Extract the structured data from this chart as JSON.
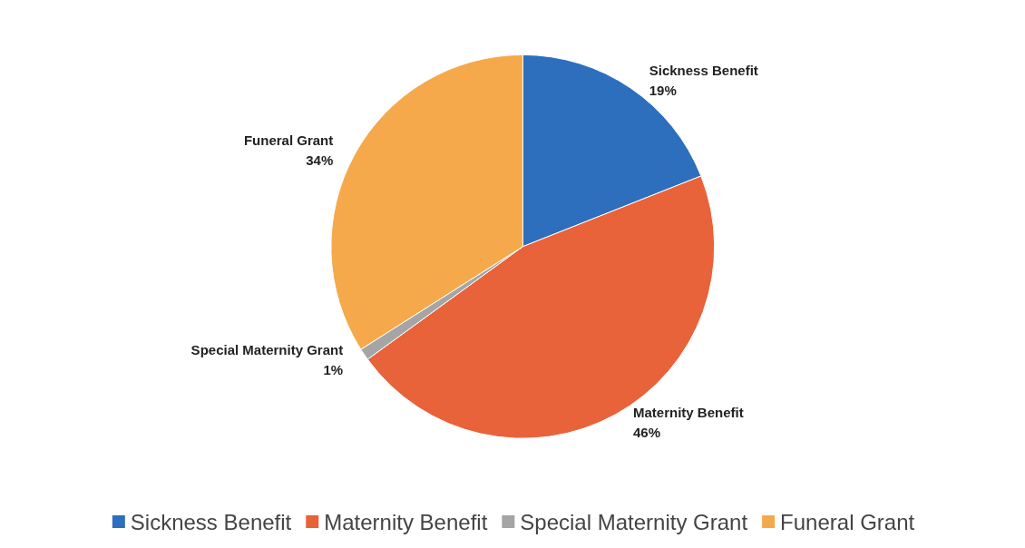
{
  "chart_data": {
    "type": "pie",
    "categories": [
      "Sickness Benefit",
      "Maternity Benefit",
      "Special Maternity Grant",
      "Funeral Grant"
    ],
    "values": [
      19,
      46,
      1,
      34
    ],
    "colors": [
      "#2e6fbd",
      "#e8623a",
      "#a5a5a5",
      "#f5a94a"
    ],
    "value_labels": [
      "19%",
      "46%",
      "1%",
      "34%"
    ],
    "legend": "bottom"
  }
}
